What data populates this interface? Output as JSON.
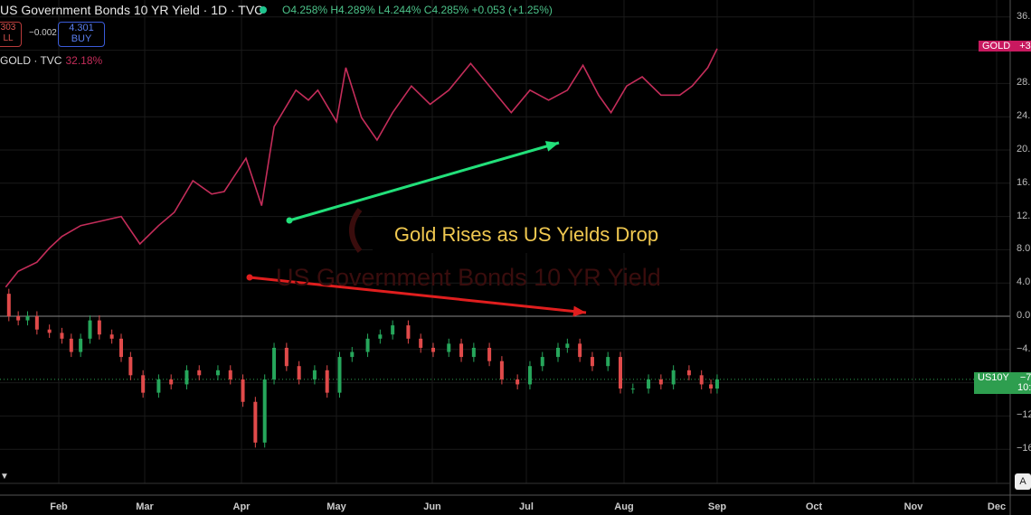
{
  "header": {
    "title": "US Government Bonds 10 YR Yield · 1D · TVC",
    "ohlc": "O4.258% H4.289% L4.244% C4.285% +0.053 (+1.25%)",
    "sell_price": "303",
    "sell_label": "LL",
    "spread": "−0.002",
    "buy_price": "4.301",
    "buy_label": "BUY",
    "compare_symbol": "GOLD · TVC",
    "compare_change": "32.18%"
  },
  "colors": {
    "gold": "#c42d5a",
    "up": "#26a65b",
    "down": "#e04a4a",
    "annotation_text": "#f0c850",
    "arrow_up": "#22e07a",
    "arrow_down": "#e01e1e"
  },
  "price_axis": {
    "labels": [
      "36.",
      "28.",
      "24.",
      "20.",
      "16.",
      "12.",
      "8.0",
      "4.0",
      "0.0",
      "−4.",
      "−12",
      "−16"
    ],
    "gold_tag": {
      "symbol": "GOLD",
      "value": "+32"
    },
    "us10y_tag": {
      "symbol": "US10Y",
      "value": "−7.",
      "countdown": "10:"
    },
    "auto_button": "A"
  },
  "time_axis": {
    "months": [
      "Feb",
      "Mar",
      "Apr",
      "May",
      "Jun",
      "Jul",
      "Aug",
      "Sep",
      "Oct",
      "Nov",
      "Dec"
    ]
  },
  "annotation": "Gold Rises as US Yields Drop",
  "watermark": "US Government Bonds 10 YR Yield",
  "chart_data": {
    "type": "line",
    "yunit": "% change",
    "ylim": [
      -18,
      38
    ],
    "yticks": [
      36,
      32,
      28,
      24,
      20,
      16,
      12,
      8,
      4,
      0,
      -4,
      -8,
      -12,
      -16
    ],
    "grid": true,
    "series": [
      {
        "name": "GOLD",
        "style": "line",
        "points": [
          [
            "2025-01-15",
            3.5
          ],
          [
            "2025-01-19",
            5.4
          ],
          [
            "2025-01-25",
            6.5
          ],
          [
            "2025-01-29",
            8.2
          ],
          [
            "2025-02-02",
            9.6
          ],
          [
            "2025-02-08",
            10.9
          ],
          [
            "2025-02-14",
            11.4
          ],
          [
            "2025-02-21",
            12.0
          ],
          [
            "2025-02-27",
            8.7
          ],
          [
            "2025-03-05",
            10.9
          ],
          [
            "2025-03-10",
            12.5
          ],
          [
            "2025-03-16",
            16.3
          ],
          [
            "2025-03-22",
            14.7
          ],
          [
            "2025-03-26",
            15.0
          ],
          [
            "2025-04-02",
            19.0
          ],
          [
            "2025-04-07",
            13.3
          ],
          [
            "2025-04-11",
            22.8
          ],
          [
            "2025-04-18",
            27.2
          ],
          [
            "2025-04-22",
            26.0
          ],
          [
            "2025-04-25",
            27.2
          ],
          [
            "2025-05-01",
            23.4
          ],
          [
            "2025-05-04",
            29.9
          ],
          [
            "2025-05-09",
            23.9
          ],
          [
            "2025-05-14",
            21.2
          ],
          [
            "2025-05-19",
            24.5
          ],
          [
            "2025-05-25",
            27.7
          ],
          [
            "2025-05-31",
            25.5
          ],
          [
            "2025-06-06",
            27.2
          ],
          [
            "2025-06-13",
            30.4
          ],
          [
            "2025-06-19",
            27.7
          ],
          [
            "2025-06-26",
            24.5
          ],
          [
            "2025-07-02",
            27.2
          ],
          [
            "2025-07-08",
            26.0
          ],
          [
            "2025-07-14",
            27.2
          ],
          [
            "2025-07-19",
            30.2
          ],
          [
            "2025-07-24",
            26.6
          ],
          [
            "2025-07-28",
            24.5
          ],
          [
            "2025-08-02",
            27.7
          ],
          [
            "2025-08-07",
            28.8
          ],
          [
            "2025-08-13",
            26.6
          ],
          [
            "2025-08-19",
            26.6
          ],
          [
            "2025-08-23",
            27.7
          ],
          [
            "2025-08-28",
            29.9
          ],
          [
            "2025-08-31",
            32.18
          ]
        ]
      },
      {
        "name": "US10Y",
        "style": "candles",
        "points": [
          [
            "2025-01-13",
            2.7
          ],
          [
            "2025-01-16",
            0.0
          ],
          [
            "2025-01-19",
            -0.5
          ],
          [
            "2025-01-22",
            0.0
          ],
          [
            "2025-01-25",
            -1.6
          ],
          [
            "2025-01-29",
            -2.0
          ],
          [
            "2025-02-02",
            -2.7
          ],
          [
            "2025-02-05",
            -4.3
          ],
          [
            "2025-02-08",
            -2.7
          ],
          [
            "2025-02-11",
            -0.5
          ],
          [
            "2025-02-14",
            -2.2
          ],
          [
            "2025-02-18",
            -2.7
          ],
          [
            "2025-02-21",
            -4.9
          ],
          [
            "2025-02-24",
            -7.1
          ],
          [
            "2025-02-28",
            -9.2
          ],
          [
            "2025-03-05",
            -7.6
          ],
          [
            "2025-03-09",
            -8.2
          ],
          [
            "2025-03-14",
            -6.5
          ],
          [
            "2025-03-18",
            -7.1
          ],
          [
            "2025-03-24",
            -6.5
          ],
          [
            "2025-03-28",
            -7.6
          ],
          [
            "2025-04-01",
            -10.3
          ],
          [
            "2025-04-05",
            -15.2
          ],
          [
            "2025-04-08",
            -7.6
          ],
          [
            "2025-04-11",
            -3.8
          ],
          [
            "2025-04-15",
            -6.0
          ],
          [
            "2025-04-19",
            -7.6
          ],
          [
            "2025-04-24",
            -6.5
          ],
          [
            "2025-04-28",
            -9.2
          ],
          [
            "2025-05-02",
            -4.9
          ],
          [
            "2025-05-06",
            -4.3
          ],
          [
            "2025-05-11",
            -2.7
          ],
          [
            "2025-05-15",
            -2.2
          ],
          [
            "2025-05-19",
            -1.1
          ],
          [
            "2025-05-24",
            -2.7
          ],
          [
            "2025-05-28",
            -3.8
          ],
          [
            "2025-06-01",
            -4.3
          ],
          [
            "2025-06-06",
            -3.3
          ],
          [
            "2025-06-10",
            -4.9
          ],
          [
            "2025-06-14",
            -3.8
          ],
          [
            "2025-06-19",
            -5.4
          ],
          [
            "2025-06-23",
            -7.6
          ],
          [
            "2025-06-28",
            -8.2
          ],
          [
            "2025-07-02",
            -6.0
          ],
          [
            "2025-07-06",
            -4.9
          ],
          [
            "2025-07-11",
            -3.8
          ],
          [
            "2025-07-14",
            -3.3
          ],
          [
            "2025-07-18",
            -4.9
          ],
          [
            "2025-07-22",
            -6.0
          ],
          [
            "2025-07-27",
            -4.9
          ],
          [
            "2025-07-31",
            -8.7
          ],
          [
            "2025-08-04",
            -8.7
          ],
          [
            "2025-08-09",
            -7.6
          ],
          [
            "2025-08-13",
            -8.2
          ],
          [
            "2025-08-17",
            -6.5
          ],
          [
            "2025-08-22",
            -7.1
          ],
          [
            "2025-08-26",
            -8.2
          ],
          [
            "2025-08-29",
            -8.7
          ],
          [
            "2025-08-31",
            -7.6
          ]
        ]
      }
    ]
  }
}
